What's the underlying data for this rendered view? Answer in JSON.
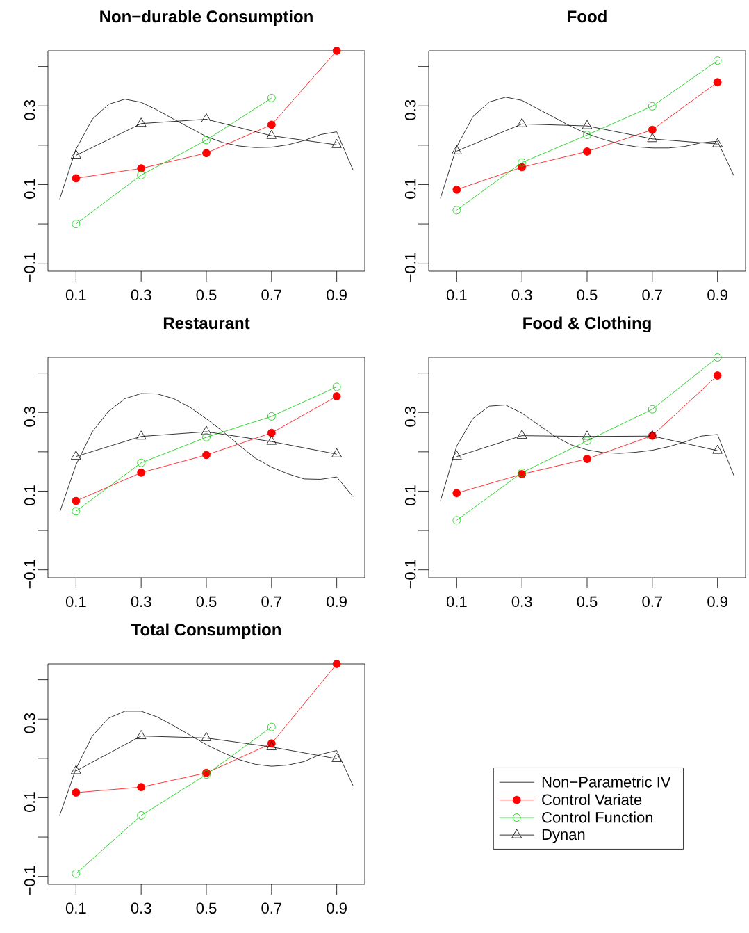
{
  "chart_data": [
    {
      "type": "line",
      "title": "Non−durable Consumption",
      "xlim": [
        0.014,
        0.986
      ],
      "ylim": [
        -0.12,
        0.44
      ],
      "xticks": [
        0.1,
        0.3,
        0.5,
        0.7,
        0.9
      ],
      "yticks": [
        {
          "value": -0.1,
          "label": "−0.1"
        },
        {
          "value": 0,
          "label": null
        },
        {
          "value": 0.1,
          "label": "0.1"
        },
        {
          "value": 0.2,
          "label": null
        },
        {
          "value": 0.3,
          "label": "0.3"
        },
        {
          "value": 0.4,
          "label": null
        }
      ],
      "series": [
        {
          "color": "#000000",
          "marker": "none",
          "x": [
            0.05,
            0.1,
            0.15,
            0.2,
            0.25,
            0.3,
            0.35,
            0.4,
            0.45,
            0.5,
            0.55,
            0.6,
            0.65,
            0.7,
            0.75,
            0.8,
            0.85,
            0.9,
            0.95
          ],
          "values": [
            0.063,
            0.19,
            0.266,
            0.304,
            0.317,
            0.309,
            0.289,
            0.266,
            0.244,
            0.222,
            0.207,
            0.198,
            0.194,
            0.195,
            0.201,
            0.212,
            0.227,
            0.234,
            0.137
          ]
        },
        {
          "color": "#ff0000",
          "marker": "circle",
          "x": [
            0.1,
            0.3,
            0.5,
            0.7,
            0.9
          ],
          "values": [
            0.116,
            0.141,
            0.18,
            0.252,
            0.44
          ]
        },
        {
          "color": "#00cd00",
          "marker": "circle",
          "x": [
            0.1,
            0.3,
            0.5,
            0.7
          ],
          "values": [
            0.0,
            0.124,
            0.213,
            0.32
          ]
        },
        {
          "color": "#000000",
          "marker": "triangle",
          "x": [
            0.1,
            0.3,
            0.5,
            0.7,
            0.9
          ],
          "values": [
            0.174,
            0.255,
            0.266,
            0.224,
            0.201
          ]
        }
      ]
    },
    {
      "type": "line",
      "title": "Food",
      "xlim": [
        0.014,
        0.986
      ],
      "ylim": [
        -0.12,
        0.44
      ],
      "xticks": [
        0.1,
        0.3,
        0.5,
        0.7,
        0.9
      ],
      "yticks": [
        {
          "value": -0.1,
          "label": "−0.1"
        },
        {
          "value": 0,
          "label": null
        },
        {
          "value": 0.1,
          "label": "0.1"
        },
        {
          "value": 0.2,
          "label": null
        },
        {
          "value": 0.3,
          "label": "0.3"
        },
        {
          "value": 0.4,
          "label": null
        }
      ],
      "series": [
        {
          "color": "#000000",
          "marker": "none",
          "x": [
            0.05,
            0.1,
            0.15,
            0.2,
            0.25,
            0.3,
            0.35,
            0.4,
            0.45,
            0.5,
            0.55,
            0.6,
            0.65,
            0.7,
            0.75,
            0.8,
            0.85,
            0.9,
            0.95
          ],
          "values": [
            0.065,
            0.196,
            0.273,
            0.31,
            0.322,
            0.314,
            0.292,
            0.27,
            0.248,
            0.229,
            0.215,
            0.203,
            0.196,
            0.193,
            0.193,
            0.197,
            0.206,
            0.21,
            0.123
          ]
        },
        {
          "color": "#ff0000",
          "marker": "circle",
          "x": [
            0.1,
            0.3,
            0.5,
            0.7,
            0.9
          ],
          "values": [
            0.087,
            0.144,
            0.184,
            0.239,
            0.36
          ]
        },
        {
          "color": "#00cd00",
          "marker": "circle",
          "x": [
            0.1,
            0.3,
            0.5,
            0.7,
            0.9
          ],
          "values": [
            0.035,
            0.156,
            0.226,
            0.299,
            0.415
          ]
        },
        {
          "color": "#000000",
          "marker": "triangle",
          "x": [
            0.1,
            0.3,
            0.5,
            0.7,
            0.9
          ],
          "values": [
            0.185,
            0.254,
            0.249,
            0.216,
            0.203
          ]
        }
      ]
    },
    {
      "type": "line",
      "title": "Restaurant",
      "xlim": [
        0.014,
        0.986
      ],
      "ylim": [
        -0.12,
        0.44
      ],
      "xticks": [
        0.1,
        0.3,
        0.5,
        0.7,
        0.9
      ],
      "yticks": [
        {
          "value": -0.1,
          "label": "−0.1"
        },
        {
          "value": 0,
          "label": null
        },
        {
          "value": 0.1,
          "label": "0.1"
        },
        {
          "value": 0.2,
          "label": null
        },
        {
          "value": 0.3,
          "label": "0.3"
        },
        {
          "value": 0.4,
          "label": null
        }
      ],
      "series": [
        {
          "color": "#000000",
          "marker": "none",
          "x": [
            0.05,
            0.1,
            0.15,
            0.2,
            0.25,
            0.3,
            0.35,
            0.4,
            0.45,
            0.5,
            0.55,
            0.6,
            0.65,
            0.7,
            0.75,
            0.8,
            0.85,
            0.9,
            0.95
          ],
          "values": [
            0.046,
            0.167,
            0.251,
            0.303,
            0.335,
            0.348,
            0.347,
            0.335,
            0.313,
            0.284,
            0.252,
            0.217,
            0.184,
            0.161,
            0.144,
            0.131,
            0.13,
            0.136,
            0.086
          ]
        },
        {
          "color": "#ff0000",
          "marker": "circle",
          "x": [
            0.1,
            0.3,
            0.5,
            0.7,
            0.9
          ],
          "values": [
            0.075,
            0.147,
            0.192,
            0.248,
            0.341
          ]
        },
        {
          "color": "#00cd00",
          "marker": "circle",
          "x": [
            0.1,
            0.3,
            0.5,
            0.7,
            0.9
          ],
          "values": [
            0.049,
            0.172,
            0.237,
            0.29,
            0.365
          ]
        },
        {
          "color": "#000000",
          "marker": "triangle",
          "x": [
            0.1,
            0.3,
            0.5,
            0.7,
            0.9
          ],
          "values": [
            0.188,
            0.239,
            0.251,
            0.226,
            0.194
          ]
        }
      ]
    },
    {
      "type": "line",
      "title": "Food & Clothing",
      "xlim": [
        0.014,
        0.986
      ],
      "ylim": [
        -0.12,
        0.44
      ],
      "xticks": [
        0.1,
        0.3,
        0.5,
        0.7,
        0.9
      ],
      "yticks": [
        {
          "value": -0.1,
          "label": "−0.1"
        },
        {
          "value": 0,
          "label": null
        },
        {
          "value": 0.1,
          "label": "0.1"
        },
        {
          "value": 0.2,
          "label": null
        },
        {
          "value": 0.3,
          "label": "0.3"
        },
        {
          "value": 0.4,
          "label": null
        }
      ],
      "series": [
        {
          "color": "#000000",
          "marker": "none",
          "x": [
            0.05,
            0.1,
            0.15,
            0.2,
            0.25,
            0.3,
            0.35,
            0.4,
            0.45,
            0.5,
            0.55,
            0.6,
            0.65,
            0.7,
            0.75,
            0.8,
            0.85,
            0.9,
            0.95
          ],
          "values": [
            0.075,
            0.215,
            0.285,
            0.316,
            0.319,
            0.298,
            0.269,
            0.24,
            0.218,
            0.205,
            0.198,
            0.196,
            0.199,
            0.204,
            0.213,
            0.225,
            0.24,
            0.244,
            0.14
          ]
        },
        {
          "color": "#ff0000",
          "marker": "circle",
          "x": [
            0.1,
            0.3,
            0.5,
            0.7,
            0.9
          ],
          "values": [
            0.095,
            0.143,
            0.182,
            0.241,
            0.394
          ]
        },
        {
          "color": "#00cd00",
          "marker": "circle",
          "x": [
            0.1,
            0.3,
            0.5,
            0.7,
            0.9
          ],
          "values": [
            0.026,
            0.147,
            0.228,
            0.308,
            0.44
          ]
        },
        {
          "color": "#000000",
          "marker": "triangle",
          "x": [
            0.1,
            0.3,
            0.5,
            0.7,
            0.9
          ],
          "values": [
            0.188,
            0.241,
            0.239,
            0.24,
            0.203
          ]
        }
      ]
    },
    {
      "type": "line",
      "title": "Total Consumption",
      "xlim": [
        0.014,
        0.986
      ],
      "ylim": [
        -0.12,
        0.44
      ],
      "xticks": [
        0.1,
        0.3,
        0.5,
        0.7,
        0.9
      ],
      "yticks": [
        {
          "value": -0.1,
          "label": "−0.1"
        },
        {
          "value": 0,
          "label": null
        },
        {
          "value": 0.1,
          "label": "0.1"
        },
        {
          "value": 0.2,
          "label": null
        },
        {
          "value": 0.3,
          "label": "0.3"
        },
        {
          "value": 0.4,
          "label": null
        }
      ],
      "legend": "right",
      "series": [
        {
          "name": "Non−Parametric IV",
          "color": "#000000",
          "marker": "none",
          "x": [
            0.05,
            0.1,
            0.15,
            0.2,
            0.25,
            0.3,
            0.35,
            0.4,
            0.45,
            0.5,
            0.55,
            0.6,
            0.65,
            0.7,
            0.75,
            0.8,
            0.85,
            0.9,
            0.95
          ],
          "values": [
            0.055,
            0.174,
            0.257,
            0.302,
            0.32,
            0.32,
            0.305,
            0.283,
            0.259,
            0.235,
            0.215,
            0.197,
            0.185,
            0.18,
            0.183,
            0.192,
            0.21,
            0.22,
            0.131
          ]
        },
        {
          "name": "Control Variate",
          "color": "#ff0000",
          "marker": "circle",
          "x": [
            0.1,
            0.3,
            0.5,
            0.7,
            0.9
          ],
          "values": [
            0.113,
            0.127,
            0.163,
            0.238,
            0.44
          ]
        },
        {
          "name": "Control Function",
          "color": "#00cd00",
          "marker": "circle",
          "x": [
            0.1,
            0.3,
            0.5,
            0.7
          ],
          "values": [
            -0.093,
            0.055,
            0.159,
            0.28
          ]
        },
        {
          "name": "Dynan",
          "color": "#000000",
          "marker": "triangle",
          "x": [
            0.1,
            0.3,
            0.5,
            0.7,
            0.9
          ],
          "values": [
            0.168,
            0.257,
            0.252,
            0.229,
            0.199
          ]
        }
      ]
    }
  ]
}
